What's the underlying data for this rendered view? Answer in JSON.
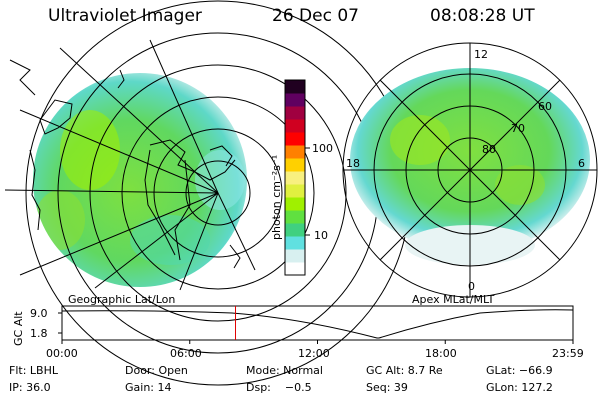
{
  "header": {
    "instrument": "Ultraviolet Imager",
    "date": "26 Dec 07",
    "time": "08:08:28 UT"
  },
  "left_panel": {
    "caption": "Geographic Lat/Lon"
  },
  "right_panel": {
    "caption": "Apex MLat/MLT",
    "mlt_labels": [
      "12",
      "18",
      "6",
      "0"
    ],
    "mlat_labels": [
      "60",
      "70",
      "80"
    ]
  },
  "colorbar": {
    "label": "photon cm⁻²s⁻¹",
    "ticks": [
      "100",
      "10"
    ],
    "colors": [
      "#ffffff",
      "#d8f0f0",
      "#60e0e0",
      "#40d080",
      "#60e040",
      "#a0f000",
      "#e0f040",
      "#f8f080",
      "#ffd000",
      "#ff8000",
      "#ff0000",
      "#d00020",
      "#a00040",
      "#600060",
      "#200020"
    ]
  },
  "timeline": {
    "axis_label": "GC Alt",
    "y_ticks": [
      "9.0",
      "1.8"
    ],
    "x_ticks": [
      "00:00",
      "06:00",
      "12:00",
      "18:00",
      "23:59"
    ],
    "marker_fraction": 0.3395
  },
  "info": {
    "row1": [
      {
        "text": "Flt: LBHL"
      },
      {
        "text": "Door: Open"
      },
      {
        "text": "Mode: Normal"
      },
      {
        "text": "GC Alt: 8.7 Re"
      },
      {
        "text": "GLat: −66.9"
      }
    ],
    "row2": [
      {
        "text": "IP: 36.0"
      },
      {
        "text": "Gain: 14"
      },
      {
        "text": "Dsp:    −0.5"
      },
      {
        "text": "Seq: 39"
      },
      {
        "text": "GLon: 127.2"
      }
    ]
  }
}
